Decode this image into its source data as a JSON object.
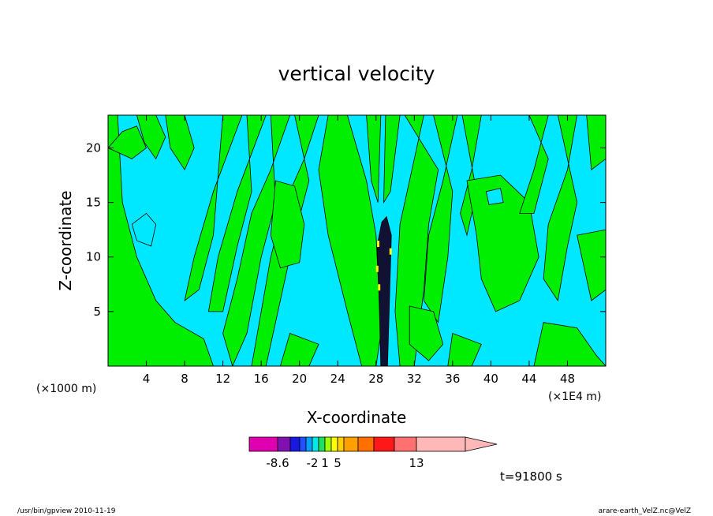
{
  "chart_data": {
    "type": "heatmap",
    "title": "vertical velocity",
    "xlabel": "X-coordinate",
    "ylabel": "Z-coordinate",
    "x_unit_label": "(×1000 m)",
    "x_scale_label": "(×1E4 m)",
    "xlim": [
      0,
      52
    ],
    "ylim": [
      0,
      23
    ],
    "xticks": [
      4,
      8,
      12,
      16,
      20,
      24,
      28,
      32,
      36,
      40,
      44,
      48
    ],
    "yticks": [
      5,
      10,
      15,
      20
    ],
    "colorbar": {
      "colors": [
        "#e000b0",
        "#8010b0",
        "#1818e0",
        "#2050ff",
        "#00a0ff",
        "#00e8e8",
        "#20e060",
        "#a0ff00",
        "#ffff00",
        "#ffd000",
        "#ffa000",
        "#ff7000",
        "#ff1818",
        "#ff7070",
        "#ffb8b8"
      ],
      "labels": [
        {
          "text": "-8.6",
          "index": 0
        },
        {
          "text": "-2",
          "index": 4
        },
        {
          "text": "1",
          "index": 6
        },
        {
          "text": "5",
          "index": 8
        },
        {
          "text": "13",
          "index": 13
        }
      ]
    },
    "background_color": "#00e8ff",
    "positive_color": "#00ee00",
    "time_label": "t=91800 s"
  },
  "footer": {
    "left": "/usr/bin/gpview   2010-11-19",
    "right": "arare-earth_VelZ.nc@VelZ"
  }
}
